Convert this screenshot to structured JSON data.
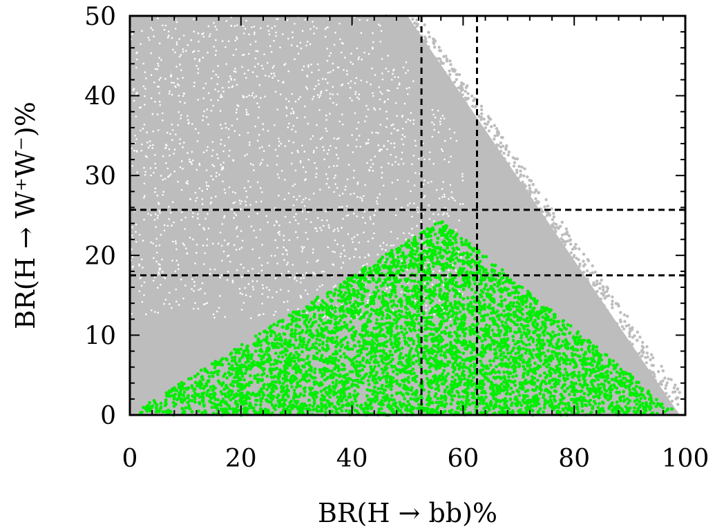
{
  "chart_data": {
    "type": "scatter",
    "xlabel": "BR(H → bb)%",
    "ylabel": "BR(H → W⁺W⁻)%",
    "xlim": [
      0,
      100
    ],
    "ylim": [
      0,
      50
    ],
    "x_ticks": [
      "0",
      "20",
      "40",
      "60",
      "80",
      "100"
    ],
    "y_ticks": [
      "0",
      "10",
      "20",
      "30",
      "40",
      "50"
    ],
    "x_tick_values": [
      0,
      20,
      40,
      60,
      80,
      100
    ],
    "y_tick_values": [
      0,
      10,
      20,
      30,
      40,
      50
    ],
    "grid": false,
    "legend": "none",
    "series": [
      {
        "color": "#bdbdbd",
        "description_region": "filled triangular region under line y = 100 - x, clipped at y = 50",
        "region_vertices": [
          [
            0,
            0
          ],
          [
            0,
            50
          ],
          [
            50,
            50
          ],
          [
            99,
            0
          ]
        ]
      },
      {
        "color": "#00ee00",
        "region_vertices": [
          [
            0,
            0
          ],
          [
            56,
            24.5
          ],
          [
            99,
            0
          ]
        ]
      }
    ],
    "reference_lines": {
      "vertical": [
        52.5,
        62.5
      ],
      "horizontal": [
        17.5,
        25.7
      ],
      "style": "dashed",
      "color": "#000000"
    }
  }
}
